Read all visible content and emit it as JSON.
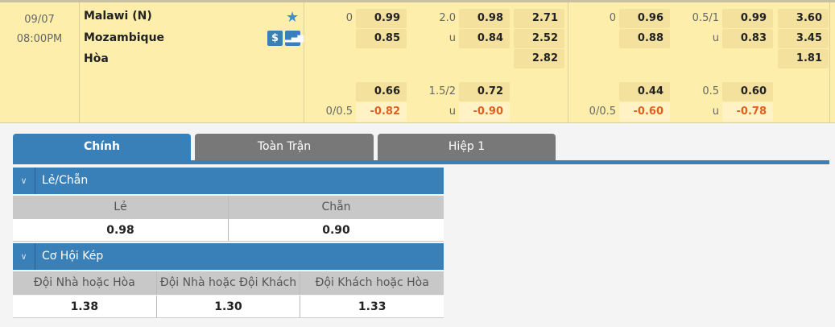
{
  "match": {
    "date": "09/07",
    "time": "08:00PM",
    "home": "Malawi (N)",
    "away": "Mozambique",
    "draw": "Hòa",
    "icons": [
      "star-icon",
      "dollar-icon",
      "stats-icon"
    ]
  },
  "odds": {
    "ft_hdp": {
      "home_line": "0",
      "home": "0.99",
      "away": "0.85",
      "h1_home_line": "",
      "h1_home": "0.66",
      "h1_away_line": "0/0.5",
      "h1_away": "-0.82"
    },
    "ft_ou": {
      "line": "2.0",
      "over": "0.98",
      "under_label": "u",
      "under": "0.84",
      "h2_line": "1.5/2",
      "h2_over": "0.72",
      "h2_under_label": "u",
      "h2_under": "-0.90"
    },
    "ft_1x2": {
      "home": "2.71",
      "away": "2.52",
      "draw": "2.82"
    },
    "h1_hdp": {
      "home_line": "0",
      "home": "0.96",
      "away": "0.88",
      "r2_home": "0.44",
      "r2_away_line": "0/0.5",
      "r2_away": "-0.60"
    },
    "h1_ou": {
      "line": "0.5/1",
      "over": "0.99",
      "under_label": "u",
      "under": "0.83",
      "r2_line": "0.5",
      "r2_over": "0.60",
      "r2_under_label": "u",
      "r2_under": "-0.78"
    },
    "h1_1x2": {
      "home": "3.60",
      "away": "3.45",
      "draw": "1.81"
    }
  },
  "tabs": [
    {
      "label": "Chính",
      "active": true
    },
    {
      "label": "Toàn Trận"
    },
    {
      "label": "Hiệp 1"
    }
  ],
  "odd_even": {
    "title": "Lẻ/Chẵn",
    "headers": [
      "Lẻ",
      "Chẵn"
    ],
    "values": [
      "0.98",
      "0.90"
    ]
  },
  "double_chance": {
    "title": "Cơ Hội Kép",
    "headers": [
      "Đội Nhà hoặc Hòa",
      "Đội Nhà hoặc Đội Khách",
      "Đội Khách hoặc Hòa"
    ],
    "values": [
      "1.38",
      "1.30",
      "1.33"
    ]
  },
  "colors": {
    "accent": "#3a80b8",
    "row_bg": "#fdeeab",
    "negative": "#e0601e"
  }
}
